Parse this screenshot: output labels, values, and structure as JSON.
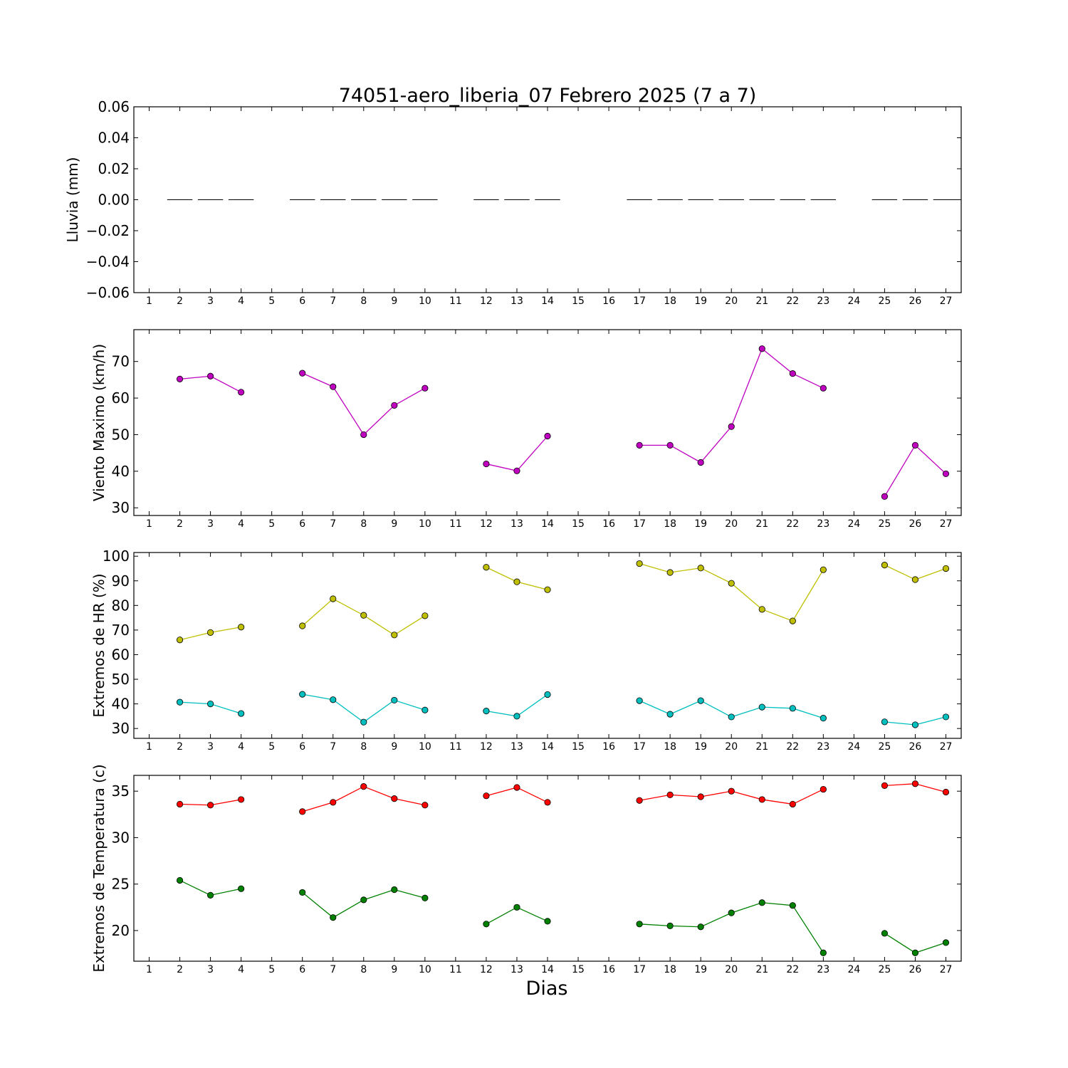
{
  "chart_data": {
    "title": "74051-aero_liberia_07 Febrero 2025  (7 a 7)",
    "xlabel": "Dias",
    "x_ticks": [
      1,
      2,
      3,
      4,
      5,
      6,
      7,
      8,
      9,
      10,
      11,
      12,
      13,
      14,
      15,
      16,
      17,
      18,
      19,
      20,
      21,
      22,
      23,
      24,
      25,
      26,
      27
    ],
    "xlim": [
      0.5,
      27.5
    ],
    "panels": [
      {
        "type": "bar",
        "ylabel": "Lluvia (mm)",
        "ylim": [
          -0.06,
          0.06
        ],
        "yticks": [
          0.06,
          0.04,
          0.02,
          0.0,
          -0.02,
          -0.04,
          -0.06
        ],
        "ytick_labels": [
          "0.06",
          "0.04",
          "0.02",
          "0.00",
          "−0.02",
          "−0.04",
          "−0.06"
        ],
        "series": [
          {
            "color": "#000000",
            "x": [
              2,
              3,
              4,
              6,
              7,
              8,
              9,
              10,
              12,
              13,
              14,
              17,
              18,
              19,
              20,
              21,
              22,
              23,
              25,
              26,
              27
            ],
            "values": [
              0,
              0,
              0,
              0,
              0,
              0,
              0,
              0,
              0,
              0,
              0,
              0,
              0,
              0,
              0,
              0,
              0,
              0,
              0,
              0,
              0
            ]
          }
        ]
      },
      {
        "type": "line",
        "ylabel": "Viento Maximo (km/h)",
        "ylim": [
          27.9,
          78.7
        ],
        "yticks": [
          30,
          40,
          50,
          60,
          70
        ],
        "ytick_labels": [
          "30",
          "40",
          "50",
          "60",
          "70"
        ],
        "series": [
          {
            "color": "#bf00bf",
            "x": [
              2,
              3,
              4,
              6,
              7,
              8,
              9,
              10,
              12,
              13,
              14,
              17,
              18,
              19,
              20,
              21,
              22,
              23,
              25,
              26,
              27
            ],
            "values": [
              65.2,
              66.0,
              61.6,
              66.8,
              63.1,
              50.0,
              58.0,
              62.7,
              42.0,
              40.1,
              49.6,
              47.1,
              47.1,
              42.4,
              52.2,
              73.5,
              66.7,
              62.7,
              33.1,
              47.1,
              39.3
            ]
          }
        ]
      },
      {
        "type": "line",
        "ylabel": "Extremos de HR (%)",
        "ylim": [
          26.0,
          101.5
        ],
        "yticks": [
          30,
          40,
          50,
          60,
          70,
          80,
          90,
          100
        ],
        "ytick_labels": [
          "30",
          "40",
          "50",
          "60",
          "70",
          "80",
          "90",
          "100"
        ],
        "series": [
          {
            "color": "#bfbf00",
            "x": [
              2,
              3,
              4,
              6,
              7,
              8,
              9,
              10,
              12,
              13,
              14,
              17,
              18,
              19,
              20,
              21,
              22,
              23,
              25,
              26,
              27
            ],
            "values": [
              66.0,
              69.0,
              71.2,
              71.7,
              82.7,
              76.0,
              68.0,
              75.8,
              95.5,
              89.6,
              86.4,
              97.0,
              93.4,
              95.2,
              89.0,
              78.4,
              73.7,
              94.5,
              96.4,
              90.5,
              95.0
            ]
          },
          {
            "color": "#00bfbf",
            "x": [
              2,
              3,
              4,
              6,
              7,
              8,
              9,
              10,
              12,
              13,
              14,
              17,
              18,
              19,
              20,
              21,
              22,
              23,
              25,
              26,
              27
            ],
            "values": [
              40.7,
              40.0,
              36.1,
              43.9,
              41.7,
              32.6,
              41.5,
              37.5,
              37.1,
              35.0,
              43.8,
              41.3,
              35.8,
              41.3,
              34.7,
              38.7,
              38.2,
              34.2,
              32.7,
              31.5,
              34.7
            ]
          }
        ]
      },
      {
        "type": "line",
        "ylabel": "Extremos de Temperatura (c)",
        "ylim": [
          16.7,
          36.7
        ],
        "yticks": [
          20,
          25,
          30,
          35
        ],
        "ytick_labels": [
          "20",
          "25",
          "30",
          "35"
        ],
        "series": [
          {
            "color": "#ff0000",
            "x": [
              2,
              3,
              4,
              6,
              7,
              8,
              9,
              10,
              12,
              13,
              14,
              17,
              18,
              19,
              20,
              21,
              22,
              23,
              25,
              26,
              27
            ],
            "values": [
              33.6,
              33.5,
              34.1,
              32.8,
              33.8,
              35.5,
              34.2,
              33.5,
              34.5,
              35.4,
              33.8,
              34.0,
              34.6,
              34.4,
              35.0,
              34.1,
              33.6,
              35.2,
              35.6,
              35.8,
              34.9
            ]
          },
          {
            "color": "#008000",
            "x": [
              2,
              3,
              4,
              6,
              7,
              8,
              9,
              10,
              12,
              13,
              14,
              17,
              18,
              19,
              20,
              21,
              22,
              23,
              25,
              26,
              27
            ],
            "values": [
              25.4,
              23.8,
              24.5,
              24.1,
              21.4,
              23.3,
              24.4,
              23.5,
              20.7,
              22.5,
              21.0,
              20.7,
              20.5,
              20.4,
              21.9,
              23.0,
              22.7,
              17.6,
              19.7,
              17.6,
              18.7
            ]
          }
        ]
      }
    ]
  }
}
